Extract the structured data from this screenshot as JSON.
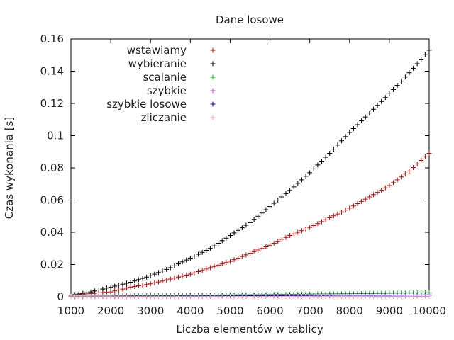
{
  "chart_data": {
    "type": "scatter",
    "title": "Dane losowe",
    "xlabel": "Liczba elementów w tablicy",
    "ylabel": "Czas wykonania [s]",
    "xlim": [
      1000,
      10000
    ],
    "ylim": [
      0,
      0.16
    ],
    "xticks": [
      "1000",
      "2000",
      "3000",
      "4000",
      "5000",
      "6000",
      "7000",
      "8000",
      "9000",
      "10000"
    ],
    "yticks": [
      "0",
      "0.02",
      "0.04",
      "0.06",
      "0.08",
      "0.1",
      "0.12",
      "0.14",
      "0.16"
    ],
    "grid": false,
    "legend_position": "top-left",
    "marker": "+",
    "series": [
      {
        "name": "wstawiamy",
        "color": "#cc0000",
        "x": [
          1000,
          1500,
          2000,
          2500,
          3000,
          3500,
          4000,
          4500,
          5000,
          5500,
          6000,
          6500,
          7000,
          7500,
          8000,
          8500,
          9000,
          9500,
          10000
        ],
        "y": [
          0.001,
          0.002,
          0.003,
          0.006,
          0.008,
          0.011,
          0.014,
          0.018,
          0.022,
          0.027,
          0.032,
          0.038,
          0.043,
          0.049,
          0.055,
          0.062,
          0.069,
          0.078,
          0.089
        ]
      },
      {
        "name": "wybieranie",
        "color": "#000000",
        "x": [
          1000,
          1500,
          2000,
          2500,
          3000,
          3500,
          4000,
          4500,
          5000,
          5500,
          6000,
          6500,
          7000,
          7500,
          8000,
          8500,
          9000,
          9500,
          10000
        ],
        "y": [
          0.001,
          0.003,
          0.006,
          0.009,
          0.013,
          0.018,
          0.024,
          0.03,
          0.038,
          0.046,
          0.056,
          0.066,
          0.077,
          0.089,
          0.102,
          0.114,
          0.126,
          0.139,
          0.153
        ]
      },
      {
        "name": "scalanie",
        "color": "#00bb00",
        "x": [
          1000,
          2000,
          3000,
          4000,
          5000,
          6000,
          7000,
          8000,
          9000,
          10000
        ],
        "y": [
          0.0003,
          0.0005,
          0.0008,
          0.001,
          0.0012,
          0.0014,
          0.0017,
          0.0019,
          0.0022,
          0.0025
        ]
      },
      {
        "name": "szybkie",
        "color": "#cc44cc",
        "x": [
          1000,
          2000,
          3000,
          4000,
          5000,
          6000,
          7000,
          8000,
          9000,
          10000
        ],
        "y": [
          0.0002,
          0.0003,
          0.0004,
          0.0005,
          0.0006,
          0.0007,
          0.0008,
          0.0009,
          0.001,
          0.0011
        ]
      },
      {
        "name": "szybkie losowe",
        "color": "#0000cc",
        "x": [
          1000,
          2000,
          3000,
          4000,
          5000,
          6000,
          7000,
          8000,
          9000,
          10000
        ],
        "y": [
          0.0002,
          0.0003,
          0.0004,
          0.0005,
          0.0006,
          0.0007,
          0.0008,
          0.0009,
          0.001,
          0.0012
        ]
      },
      {
        "name": "zliczanie",
        "color": "#ff99bb",
        "x": [
          1000,
          2000,
          3000,
          4000,
          5000,
          6000,
          7000,
          8000,
          9000,
          10000
        ],
        "y": [
          0.0001,
          0.0001,
          0.0001,
          0.0001,
          0.0002,
          0.0002,
          0.0002,
          0.0002,
          0.0003,
          0.0003
        ]
      }
    ]
  }
}
